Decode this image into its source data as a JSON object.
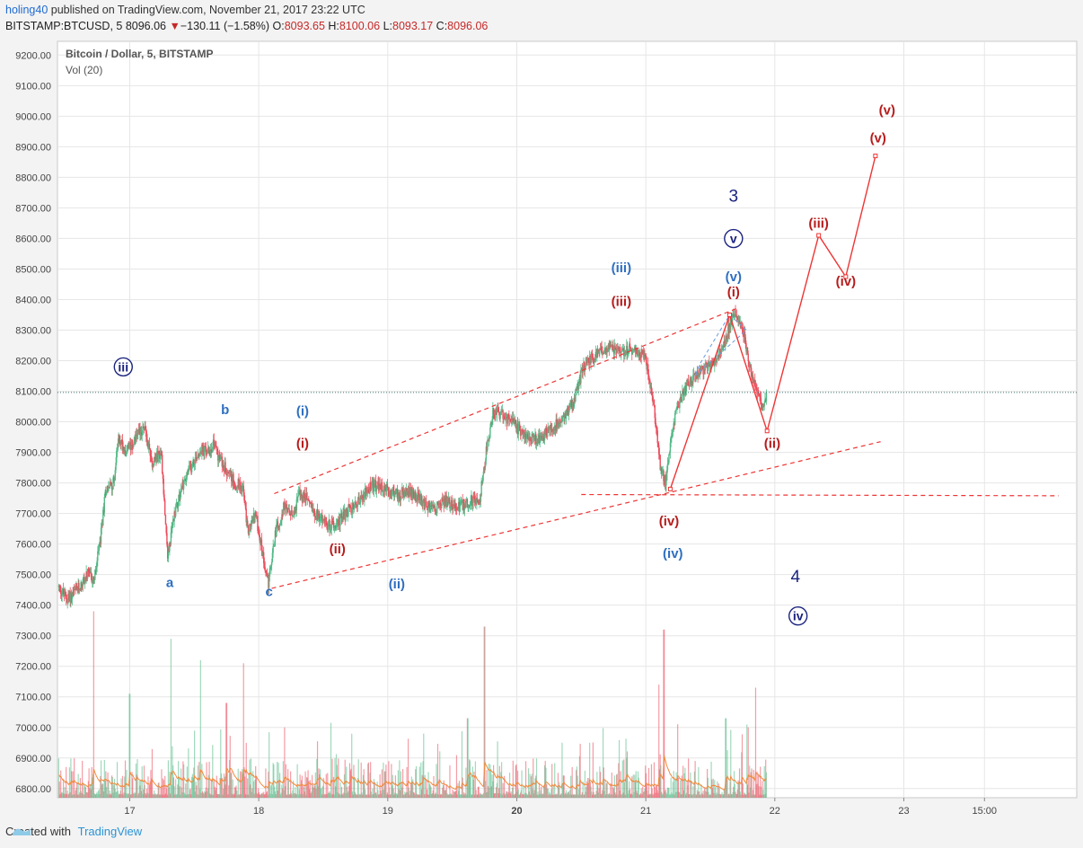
{
  "header": {
    "user": "holing40",
    "published_text": "published on TradingView.com, November 21, 2017 23:22 UTC",
    "symbol": "BITSTAMP:BTCUSD, 5",
    "price": "8096.06",
    "change": "−130.11 (−1.58%)",
    "o_label": "O:",
    "o_value": "8093.65",
    "h_label": "H:",
    "h_value": "8100.06",
    "l_label": "L:",
    "l_value": "8093.17",
    "c_label": "C:",
    "c_value": "8096.06"
  },
  "footer": {
    "created_with": "Created with",
    "brand": "TradingView"
  },
  "colors": {
    "up": "#53b987",
    "down": "#eb4d5c",
    "ma": "#f08a3c",
    "red_label": "#b71c1c",
    "blue_label": "#2f6fc0",
    "navy_label": "#1a237e",
    "trend": "#ee3535",
    "current_line": "#3d6e6e",
    "grid": "#e6e6e6"
  },
  "chart_data": {
    "type": "candlestick",
    "title": "Bitcoin / Dollar, 5, BITSTAMP",
    "indicator": "Vol (20)",
    "ylim": [
      6770,
      9245
    ],
    "y_ticks": [
      "9200.00",
      "9100.00",
      "9000.00",
      "8900.00",
      "8800.00",
      "8700.00",
      "8600.00",
      "8500.00",
      "8400.00",
      "8300.00",
      "8200.00",
      "8100.00",
      "8000.00",
      "7900.00",
      "7800.00",
      "7700.00",
      "7600.00",
      "7500.00",
      "7400.00",
      "7300.00",
      "7200.00",
      "7100.00",
      "7000.00",
      "6900.00",
      "6800.00"
    ],
    "x_ticks": [
      {
        "label": "17",
        "t": 17.0,
        "bold": false
      },
      {
        "label": "18",
        "t": 18.0,
        "bold": false
      },
      {
        "label": "19",
        "t": 19.0,
        "bold": false
      },
      {
        "label": "20",
        "t": 20.0,
        "bold": true
      },
      {
        "label": "21",
        "t": 21.0,
        "bold": false
      },
      {
        "label": "22",
        "t": 22.0,
        "bold": false
      },
      {
        "label": "23",
        "t": 23.0,
        "bold": false
      },
      {
        "label": "15:00",
        "t": 23.625,
        "bold": false
      }
    ],
    "xlim": [
      16.44,
      24.34
    ],
    "price_path": [
      [
        16.45,
        7460
      ],
      [
        16.52,
        7420
      ],
      [
        16.6,
        7450
      ],
      [
        16.68,
        7500
      ],
      [
        16.73,
        7480
      ],
      [
        16.78,
        7620
      ],
      [
        16.82,
        7780
      ],
      [
        16.88,
        7800
      ],
      [
        16.92,
        7950
      ],
      [
        16.98,
        7900
      ],
      [
        17.05,
        7950
      ],
      [
        17.12,
        7980
      ],
      [
        17.18,
        7870
      ],
      [
        17.25,
        7900
      ],
      [
        17.3,
        7560
      ],
      [
        17.36,
        7720
      ],
      [
        17.42,
        7800
      ],
      [
        17.48,
        7850
      ],
      [
        17.55,
        7910
      ],
      [
        17.62,
        7900
      ],
      [
        17.66,
        7930
      ],
      [
        17.7,
        7880
      ],
      [
        17.76,
        7840
      ],
      [
        17.82,
        7800
      ],
      [
        17.88,
        7790
      ],
      [
        17.92,
        7640
      ],
      [
        17.98,
        7700
      ],
      [
        18.04,
        7560
      ],
      [
        18.08,
        7470
      ],
      [
        18.14,
        7650
      ],
      [
        18.2,
        7720
      ],
      [
        18.26,
        7690
      ],
      [
        18.32,
        7760
      ],
      [
        18.38,
        7750
      ],
      [
        18.45,
        7700
      ],
      [
        18.55,
        7660
      ],
      [
        18.64,
        7680
      ],
      [
        18.72,
        7720
      ],
      [
        18.8,
        7750
      ],
      [
        18.88,
        7790
      ],
      [
        18.98,
        7780
      ],
      [
        19.1,
        7760
      ],
      [
        19.2,
        7770
      ],
      [
        19.3,
        7720
      ],
      [
        19.38,
        7720
      ],
      [
        19.46,
        7740
      ],
      [
        19.55,
        7720
      ],
      [
        19.65,
        7740
      ],
      [
        19.72,
        7750
      ],
      [
        19.76,
        7880
      ],
      [
        19.82,
        8030
      ],
      [
        19.9,
        8020
      ],
      [
        19.98,
        7990
      ],
      [
        20.08,
        7950
      ],
      [
        20.18,
        7940
      ],
      [
        20.28,
        7980
      ],
      [
        20.38,
        8020
      ],
      [
        20.45,
        8070
      ],
      [
        20.52,
        8180
      ],
      [
        20.6,
        8210
      ],
      [
        20.7,
        8240
      ],
      [
        20.8,
        8230
      ],
      [
        20.9,
        8240
      ],
      [
        21.0,
        8220
      ],
      [
        21.06,
        8080
      ],
      [
        21.12,
        7850
      ],
      [
        21.16,
        7800
      ],
      [
        21.22,
        8000
      ],
      [
        21.3,
        8100
      ],
      [
        21.38,
        8140
      ],
      [
        21.48,
        8180
      ],
      [
        21.55,
        8200
      ],
      [
        21.62,
        8260
      ],
      [
        21.66,
        8330
      ],
      [
        21.7,
        8350
      ],
      [
        21.76,
        8300
      ],
      [
        21.82,
        8160
      ],
      [
        21.86,
        8120
      ],
      [
        21.9,
        8050
      ],
      [
        21.94,
        8080
      ]
    ],
    "current_price": 8096.06,
    "trend_lines": [
      {
        "points": [
          [
            18.12,
            7765
          ],
          [
            21.7,
            8370
          ]
        ],
        "style": "dashed",
        "color": "trend"
      },
      {
        "points": [
          [
            18.1,
            7455
          ],
          [
            22.82,
            7935
          ]
        ],
        "style": "dashed",
        "color": "trend"
      },
      {
        "points": [
          [
            20.5,
            7762
          ],
          [
            24.2,
            7758
          ]
        ],
        "style": "dashed",
        "color": "trend"
      }
    ],
    "projection_path": [
      [
        21.19,
        7780
      ],
      [
        21.65,
        8350
      ],
      [
        21.94,
        7970
      ],
      [
        22.34,
        8610
      ],
      [
        22.55,
        8475
      ],
      [
        22.78,
        8870
      ]
    ],
    "blue_channel": [
      [
        21.38,
        8150
      ],
      [
        21.78,
        8300
      ],
      [
        21.65,
        8350
      ],
      [
        21.42,
        8190
      ]
    ],
    "wave_labels": [
      {
        "text": "iii",
        "t": 16.95,
        "p": 8165,
        "style": "navy_circle"
      },
      {
        "text": "a",
        "t": 17.31,
        "p": 7460,
        "style": "blue"
      },
      {
        "text": "b",
        "t": 17.74,
        "p": 8025,
        "style": "blue"
      },
      {
        "text": "c",
        "t": 18.08,
        "p": 7430,
        "style": "blue"
      },
      {
        "text": "(i)",
        "t": 18.34,
        "p": 8020,
        "style": "blue"
      },
      {
        "text": "(i)",
        "t": 18.34,
        "p": 7915,
        "style": "red"
      },
      {
        "text": "(ii)",
        "t": 18.61,
        "p": 7570,
        "style": "red"
      },
      {
        "text": "(ii)",
        "t": 19.07,
        "p": 7455,
        "style": "blue"
      },
      {
        "text": "(iii)",
        "t": 20.81,
        "p": 8490,
        "style": "blue"
      },
      {
        "text": "(iii)",
        "t": 20.81,
        "p": 8380,
        "style": "red"
      },
      {
        "text": "(iv)",
        "t": 21.18,
        "p": 7660,
        "style": "red"
      },
      {
        "text": "(iv)",
        "t": 21.21,
        "p": 7555,
        "style": "blue"
      },
      {
        "text": "3",
        "t": 21.68,
        "p": 8720,
        "style": "navy_big"
      },
      {
        "text": "v",
        "t": 21.68,
        "p": 8585,
        "style": "navy_circle"
      },
      {
        "text": "(v)",
        "t": 21.68,
        "p": 8460,
        "style": "blue"
      },
      {
        "text": "(i)",
        "t": 21.68,
        "p": 8410,
        "style": "red"
      },
      {
        "text": "(ii)",
        "t": 21.98,
        "p": 7915,
        "style": "red"
      },
      {
        "text": "4",
        "t": 22.16,
        "p": 7475,
        "style": "navy_big"
      },
      {
        "text": "iv",
        "t": 22.18,
        "p": 7350,
        "style": "navy_circle"
      },
      {
        "text": "(iii)",
        "t": 22.34,
        "p": 8635,
        "style": "red"
      },
      {
        "text": "(iv)",
        "t": 22.55,
        "p": 8445,
        "style": "red"
      },
      {
        "text": "(v)",
        "t": 22.8,
        "p": 8915,
        "style": "red"
      },
      {
        "text": "(v)",
        "t": 22.87,
        "p": 9005,
        "style": "red"
      }
    ],
    "volume_spikes": [
      [
        16.72,
        7380
      ],
      [
        17.0,
        7110
      ],
      [
        17.32,
        7290
      ],
      [
        17.55,
        7220
      ],
      [
        17.75,
        7080
      ],
      [
        17.88,
        7210
      ],
      [
        18.08,
        7050
      ],
      [
        18.2,
        7000
      ],
      [
        19.28,
        6980
      ],
      [
        19.62,
        7030
      ],
      [
        19.75,
        7330
      ],
      [
        20.35,
        6950
      ],
      [
        20.85,
        6900
      ],
      [
        21.1,
        7140
      ],
      [
        21.14,
        7320
      ],
      [
        21.62,
        7030
      ],
      [
        21.85,
        7130
      ]
    ]
  }
}
